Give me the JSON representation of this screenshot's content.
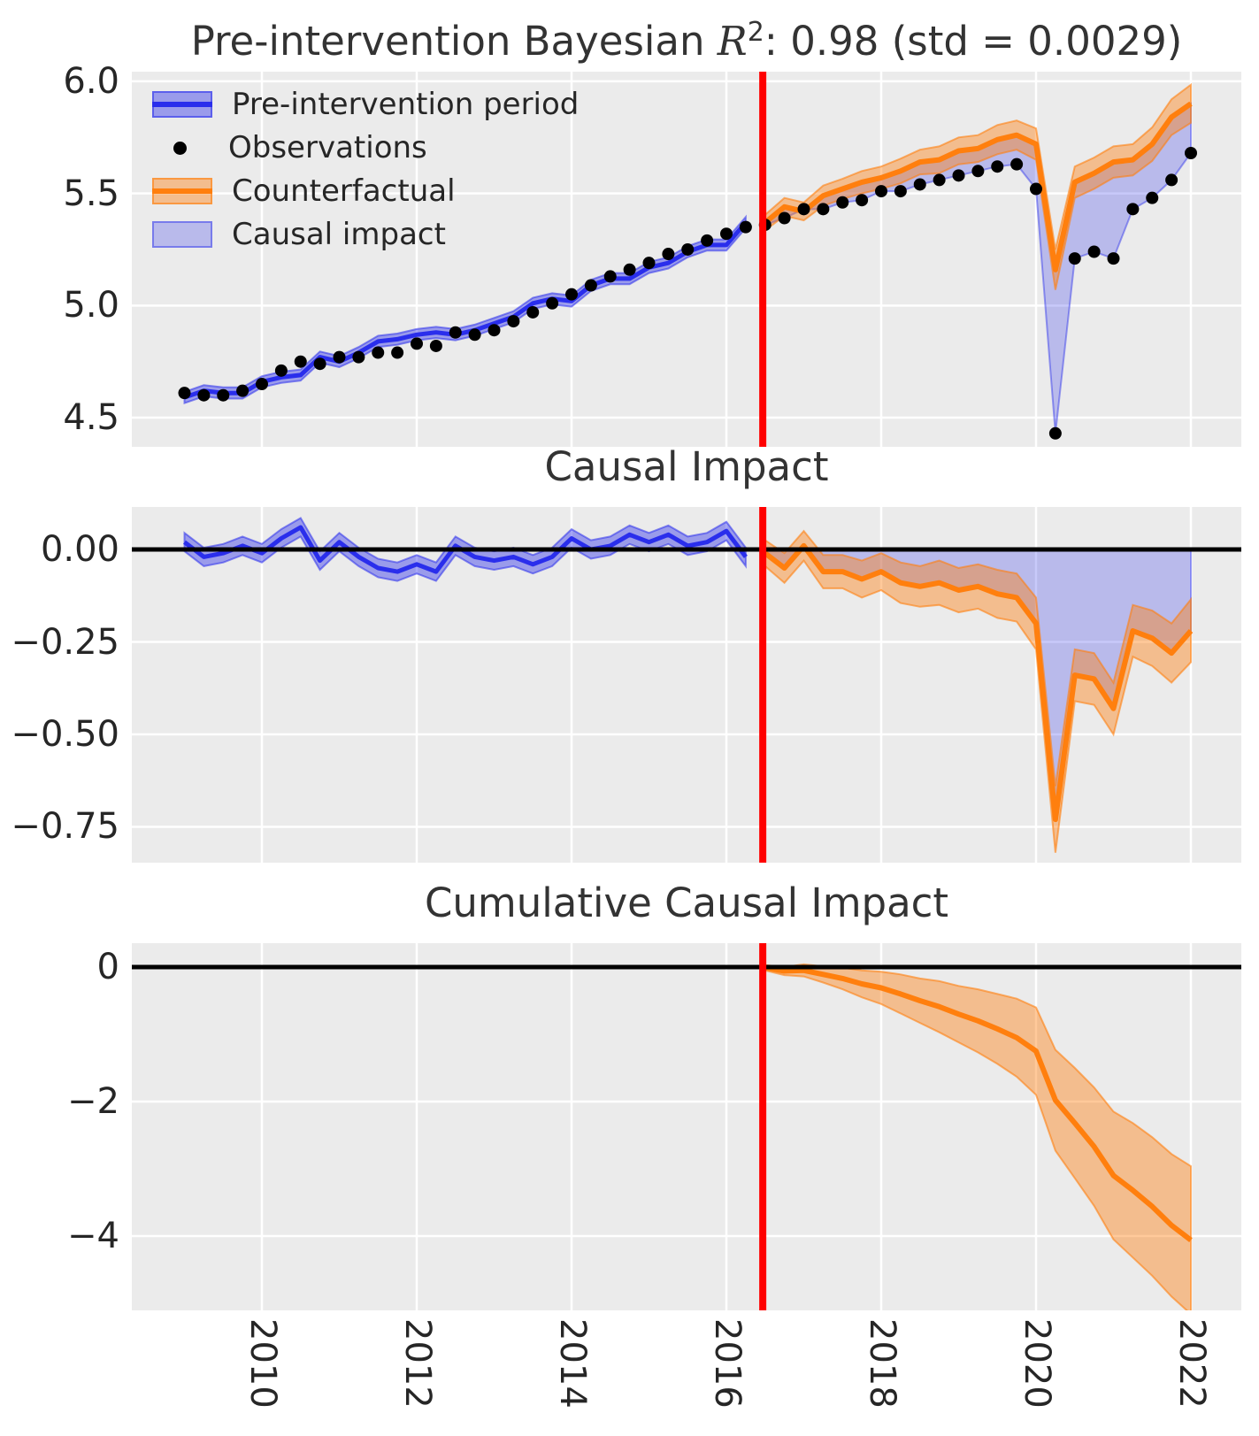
{
  "figure": {
    "title_prefix": "Pre-intervention Bayesian ",
    "title_r": "R",
    "title_sup": "2",
    "title_suffix": ": 0.98 (std = 0.0029)"
  },
  "legend": {
    "items": [
      {
        "label": "Pre-intervention period",
        "swatch": "band-line-blue"
      },
      {
        "label": "Observations",
        "swatch": "dot"
      },
      {
        "label": "Counterfactual",
        "swatch": "band-line-orange"
      },
      {
        "label": "Causal impact",
        "swatch": "patch-blue"
      }
    ]
  },
  "colors": {
    "blue": "#2a2eec",
    "blue_band": "rgba(42,46,236,0.42)",
    "blue_edge": "rgba(42,46,236,0.55)",
    "causal_fill": "rgba(42,46,236,0.26)",
    "causal_edge": "rgba(42,46,236,0.45)",
    "orange": "#ff7f0e",
    "orange_band": "rgba(255,127,14,0.42)",
    "orange_edge": "rgba(255,127,14,0.6)",
    "red": "#ff0000",
    "black": "#000000",
    "plot_bg": "#ebebeb",
    "grid": "#ffffff",
    "dots": "#000000"
  },
  "chart_data": {
    "type": "line",
    "intervention_x": 2016.47,
    "xlim": [
      2008.32,
      2022.65
    ],
    "xtick_values": [
      2010,
      2012,
      2014,
      2016,
      2018,
      2020,
      2022
    ],
    "xtick_labels": [
      "2010",
      "2012",
      "2014",
      "2016",
      "2018",
      "2020",
      "2022"
    ],
    "x_pre": [
      2009.0,
      2009.25,
      2009.5,
      2009.75,
      2010.0,
      2010.25,
      2010.5,
      2010.75,
      2011.0,
      2011.25,
      2011.5,
      2011.75,
      2012.0,
      2012.25,
      2012.5,
      2012.75,
      2013.0,
      2013.25,
      2013.5,
      2013.75,
      2014.0,
      2014.25,
      2014.5,
      2014.75,
      2015.0,
      2015.25,
      2015.5,
      2015.75,
      2016.0,
      2016.25
    ],
    "x_post": [
      2016.5,
      2016.75,
      2017.0,
      2017.25,
      2017.5,
      2017.75,
      2018.0,
      2018.25,
      2018.5,
      2018.75,
      2019.0,
      2019.25,
      2019.5,
      2019.75,
      2020.0,
      2020.25,
      2020.5,
      2020.75,
      2021.0,
      2021.25,
      2021.5,
      2021.75,
      2022.0
    ],
    "observations_pre": [
      4.61,
      4.6,
      4.6,
      4.62,
      4.65,
      4.71,
      4.75,
      4.74,
      4.77,
      4.77,
      4.79,
      4.79,
      4.83,
      4.82,
      4.88,
      4.87,
      4.89,
      4.93,
      4.97,
      5.01,
      5.05,
      5.09,
      5.13,
      5.16,
      5.19,
      5.23,
      5.25,
      5.29,
      5.32,
      5.35
    ],
    "observations_post": [
      5.36,
      5.39,
      5.43,
      5.43,
      5.46,
      5.47,
      5.51,
      5.51,
      5.54,
      5.56,
      5.58,
      5.6,
      5.62,
      5.63,
      5.52,
      4.43,
      5.21,
      5.24,
      5.21,
      5.43,
      5.48,
      5.56,
      5.68
    ],
    "pre_fit_mean": [
      4.59,
      4.62,
      4.61,
      4.61,
      4.66,
      4.68,
      4.69,
      4.77,
      4.75,
      4.79,
      4.84,
      4.85,
      4.87,
      4.88,
      4.87,
      4.89,
      4.92,
      4.95,
      5.01,
      5.03,
      5.02,
      5.09,
      5.12,
      5.12,
      5.17,
      5.19,
      5.24,
      5.27,
      5.27,
      5.37
    ],
    "pre_fit_half": 0.025,
    "counterfactual_mean": [
      5.37,
      5.44,
      5.42,
      5.49,
      5.52,
      5.55,
      5.57,
      5.6,
      5.64,
      5.65,
      5.69,
      5.7,
      5.74,
      5.76,
      5.72,
      5.16,
      5.55,
      5.59,
      5.64,
      5.65,
      5.72,
      5.84,
      5.9
    ],
    "counterfactual_half": [
      0.035,
      0.04,
      0.04,
      0.045,
      0.045,
      0.05,
      0.05,
      0.055,
      0.055,
      0.06,
      0.06,
      0.06,
      0.065,
      0.065,
      0.07,
      0.09,
      0.07,
      0.07,
      0.07,
      0.07,
      0.075,
      0.08,
      0.085
    ],
    "impact_pre_mean": [
      0.02,
      -0.02,
      -0.01,
      0.01,
      -0.01,
      0.03,
      0.06,
      -0.03,
      0.02,
      -0.02,
      -0.05,
      -0.06,
      -0.04,
      -0.06,
      0.01,
      -0.02,
      -0.03,
      -0.02,
      -0.04,
      -0.02,
      0.03,
      0.0,
      0.01,
      0.04,
      0.02,
      0.04,
      0.01,
      0.02,
      0.05,
      -0.02
    ],
    "impact_pre_half": 0.025,
    "impact_post_mean": [
      -0.01,
      -0.05,
      0.01,
      -0.06,
      -0.06,
      -0.08,
      -0.06,
      -0.09,
      -0.1,
      -0.09,
      -0.11,
      -0.1,
      -0.12,
      -0.13,
      -0.2,
      -0.73,
      -0.34,
      -0.35,
      -0.43,
      -0.22,
      -0.24,
      -0.28,
      -0.22
    ],
    "impact_post_half": [
      0.035,
      0.04,
      0.04,
      0.045,
      0.045,
      0.05,
      0.05,
      0.055,
      0.055,
      0.06,
      0.06,
      0.06,
      0.065,
      0.065,
      0.07,
      0.09,
      0.07,
      0.07,
      0.07,
      0.07,
      0.075,
      0.08,
      0.085
    ],
    "cumulative_mean": [
      -0.01,
      -0.06,
      -0.05,
      -0.11,
      -0.17,
      -0.25,
      -0.31,
      -0.4,
      -0.5,
      -0.59,
      -0.7,
      -0.8,
      -0.92,
      -1.05,
      -1.25,
      -1.98,
      -2.32,
      -2.67,
      -3.1,
      -3.32,
      -3.56,
      -3.84,
      -4.06
    ],
    "cumulative_half": [
      0.04,
      0.06,
      0.09,
      0.12,
      0.16,
      0.2,
      0.24,
      0.29,
      0.33,
      0.38,
      0.42,
      0.47,
      0.52,
      0.58,
      0.65,
      0.75,
      0.82,
      0.88,
      0.95,
      1.0,
      1.03,
      1.06,
      1.1
    ],
    "panels": [
      {
        "title": "Pre-intervention Bayesian R2: 0.98 (std = 0.0029)",
        "ylim": [
          4.37,
          6.043
        ],
        "ytick_values": [
          6.0,
          5.5,
          5.0,
          4.5
        ],
        "ytick_labels": [
          "6.0",
          "5.5",
          "5.0",
          "4.5"
        ],
        "grid": true
      },
      {
        "title": "Causal Impact",
        "ylim": [
          -0.847,
          0.115
        ],
        "ytick_values": [
          0.0,
          -0.25,
          -0.5,
          -0.75
        ],
        "ytick_labels": [
          "0.00",
          "−0.25",
          "−0.50",
          "−0.75"
        ],
        "grid": true
      },
      {
        "title": "Cumulative Causal Impact",
        "ylim": [
          -5.105,
          0.355
        ],
        "ytick_values": [
          0,
          -2,
          -4
        ],
        "ytick_labels": [
          "0",
          "−2",
          "−4"
        ],
        "grid": true
      }
    ]
  }
}
